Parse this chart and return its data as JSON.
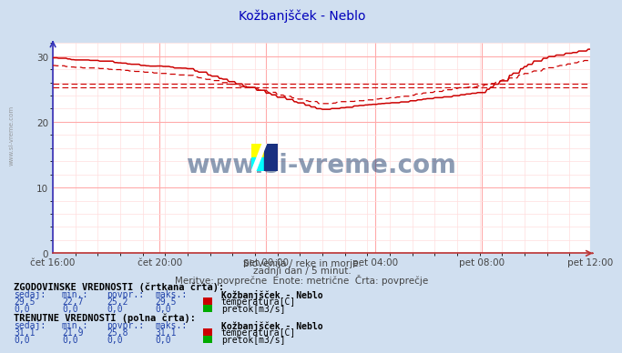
{
  "title": "Kožbanjšček - Neblo",
  "title_color": "#0000bb",
  "bg_color": "#d0dff0",
  "plot_bg_color": "#ffffff",
  "grid_color_major": "#ffaaaa",
  "grid_color_minor": "#ffdddd",
  "text_color": "#444444",
  "blue_text": "#2244aa",
  "x_labels": [
    "čet 16:00",
    "čet 20:00",
    "pet 00:00",
    "pet 04:00",
    "pet 08:00",
    "pet 12:00"
  ],
  "ylim": [
    0,
    32
  ],
  "yticks": [
    0,
    10,
    20,
    30
  ],
  "line_color": "#cc0000",
  "avg_hist": 25.2,
  "avg_curr": 25.8,
  "subtitle1": "Slovenija / reke in morje.",
  "subtitle2": "zadnji dan / 5 minut.",
  "subtitle3": "Meritve: povprečne  Enote: metrične  Črta: povprečje",
  "watermark": "www.si-vreme.com",
  "watermark_color": "#1a3a6b",
  "legend_title1": "ZGODOVINSKE VREDNOSTI (črtkana črta):",
  "legend_title2": "TRENUTNE VREDNOSTI (polna črta):",
  "legend_header": "Kožbanjšček - Neblo",
  "hist_temp": [
    29.5,
    22.7,
    25.2,
    29.5
  ],
  "hist_flow": [
    0.0,
    0.0,
    0.0,
    0.0
  ],
  "curr_temp": [
    31.1,
    21.9,
    25.8,
    31.1
  ],
  "curr_flow": [
    0.0,
    0.0,
    0.0,
    0.0
  ],
  "temp_color_box": "#cc0000",
  "flow_color_box": "#00aa00",
  "n_points": 288,
  "left_label": "www.si-vreme.com"
}
